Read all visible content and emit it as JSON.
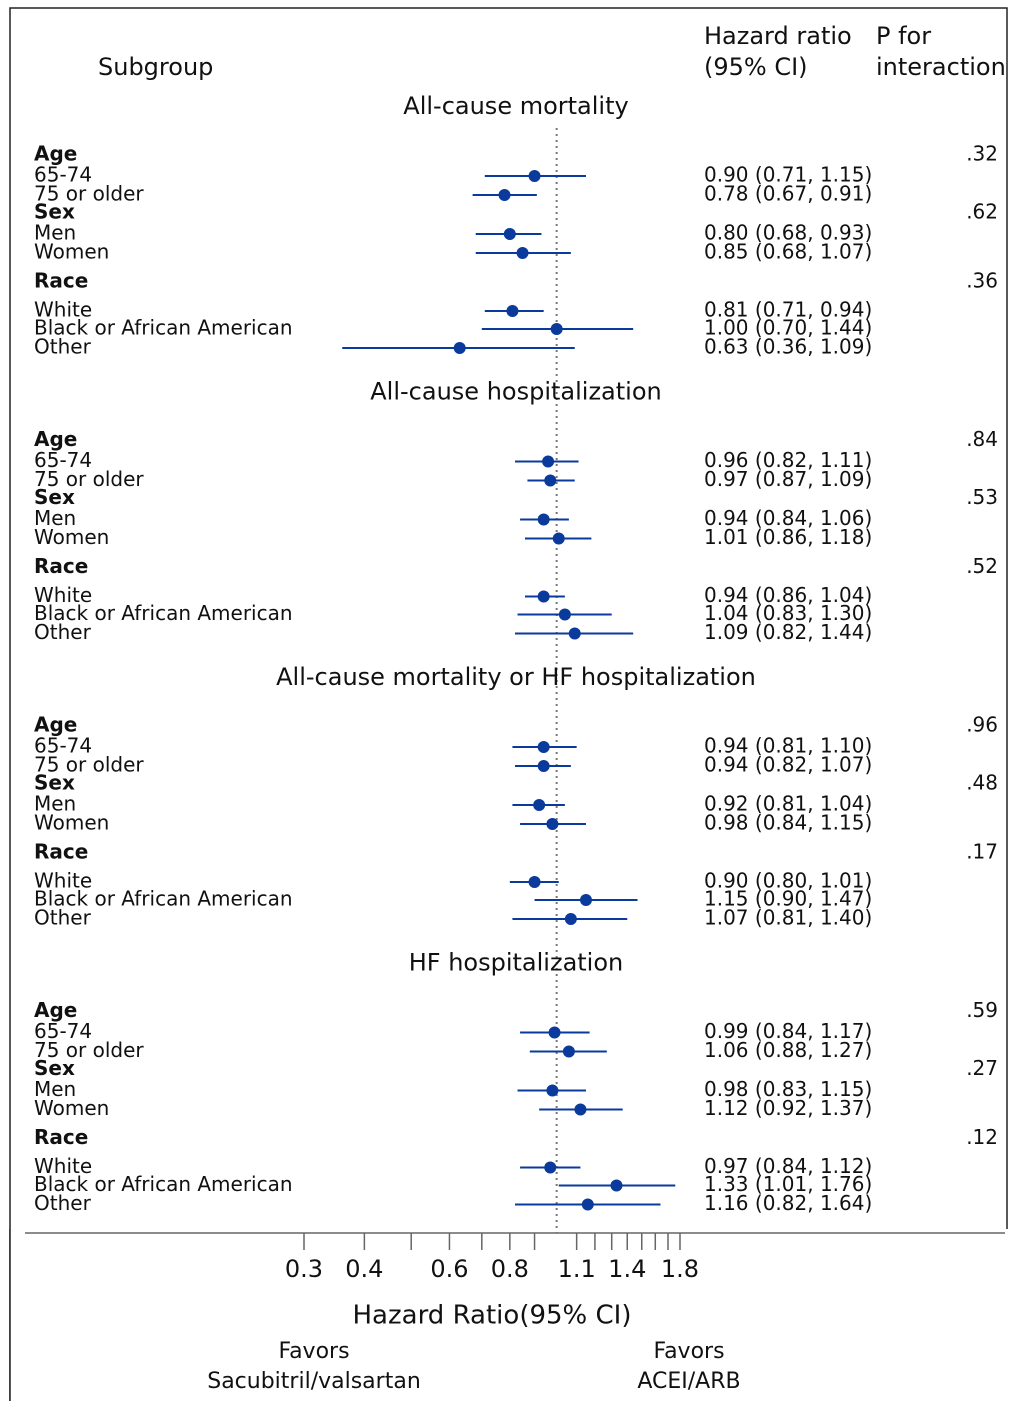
{
  "chart_data": {
    "type": "forest",
    "subgroup_header": "Subgroup",
    "hr_header": [
      "Hazard ratio",
      "(95% CI)"
    ],
    "p_header": [
      "P for",
      "interaction"
    ],
    "xlabel": "Hazard Ratio(95% CI)",
    "favors_left": [
      "Favors",
      "Sacubitril/valsartan"
    ],
    "favors_right": [
      "Favors",
      "ACEI/ARB"
    ],
    "log_x": true,
    "xlim": [
      0.3,
      1.8
    ],
    "xticks": [
      0.3,
      0.4,
      0.6,
      0.8,
      1.1,
      1.4,
      1.8
    ],
    "xminorticks": [
      0.5,
      0.7,
      0.9,
      1.2,
      1.3,
      1.5,
      1.6,
      1.7
    ],
    "refline": 1,
    "color": "#0a3a9c",
    "sections": [
      {
        "title": "All-cause mortality",
        "groups": [
          {
            "name": "Age",
            "p": ".32",
            "rows": [
              {
                "label": "65-74",
                "hr": 0.9,
                "lo": 0.71,
                "hi": 1.15,
                "ci": "0.90 (0.71, 1.15)"
              },
              {
                "label": "75 or older",
                "hr": 0.78,
                "lo": 0.67,
                "hi": 0.91,
                "ci": "0.78 (0.67, 0.91)"
              }
            ]
          },
          {
            "name": "Sex",
            "p": ".62",
            "rows": [
              {
                "label": "Men",
                "hr": 0.8,
                "lo": 0.68,
                "hi": 0.93,
                "ci": "0.80 (0.68, 0.93)"
              },
              {
                "label": "Women",
                "hr": 0.85,
                "lo": 0.68,
                "hi": 1.07,
                "ci": "0.85 (0.68, 1.07)"
              }
            ]
          },
          {
            "name": "Race",
            "p": ".36",
            "rows": [
              {
                "label": "White",
                "hr": 0.81,
                "lo": 0.71,
                "hi": 0.94,
                "ci": "0.81 (0.71, 0.94)"
              },
              {
                "label": "Black or African American",
                "hr": 1.0,
                "lo": 0.7,
                "hi": 1.44,
                "ci": "1.00 (0.70, 1.44)"
              },
              {
                "label": "Other",
                "hr": 0.63,
                "lo": 0.36,
                "hi": 1.09,
                "ci": "0.63 (0.36, 1.09)"
              }
            ]
          }
        ]
      },
      {
        "title": "All-cause hospitalization",
        "groups": [
          {
            "name": "Age",
            "p": ".84",
            "rows": [
              {
                "label": "65-74",
                "hr": 0.96,
                "lo": 0.82,
                "hi": 1.11,
                "ci": "0.96 (0.82, 1.11)"
              },
              {
                "label": "75 or older",
                "hr": 0.97,
                "lo": 0.87,
                "hi": 1.09,
                "ci": "0.97 (0.87, 1.09)"
              }
            ]
          },
          {
            "name": "Sex",
            "p": ".53",
            "rows": [
              {
                "label": "Men",
                "hr": 0.94,
                "lo": 0.84,
                "hi": 1.06,
                "ci": "0.94 (0.84, 1.06)"
              },
              {
                "label": "Women",
                "hr": 1.01,
                "lo": 0.86,
                "hi": 1.18,
                "ci": "1.01 (0.86, 1.18)"
              }
            ]
          },
          {
            "name": "Race",
            "p": ".52",
            "rows": [
              {
                "label": "White",
                "hr": 0.94,
                "lo": 0.86,
                "hi": 1.04,
                "ci": "0.94 (0.86, 1.04)"
              },
              {
                "label": "Black or African American",
                "hr": 1.04,
                "lo": 0.83,
                "hi": 1.3,
                "ci": "1.04 (0.83, 1.30)"
              },
              {
                "label": "Other",
                "hr": 1.09,
                "lo": 0.82,
                "hi": 1.44,
                "ci": "1.09 (0.82, 1.44)"
              }
            ]
          }
        ]
      },
      {
        "title": "All-cause mortality or HF hospitalization",
        "groups": [
          {
            "name": "Age",
            "p": ".96",
            "rows": [
              {
                "label": "65-74",
                "hr": 0.94,
                "lo": 0.81,
                "hi": 1.1,
                "ci": "0.94 (0.81, 1.10)"
              },
              {
                "label": "75 or older",
                "hr": 0.94,
                "lo": 0.82,
                "hi": 1.07,
                "ci": "0.94 (0.82, 1.07)"
              }
            ]
          },
          {
            "name": "Sex",
            "p": ".48",
            "rows": [
              {
                "label": "Men",
                "hr": 0.92,
                "lo": 0.81,
                "hi": 1.04,
                "ci": "0.92 (0.81, 1.04)"
              },
              {
                "label": "Women",
                "hr": 0.98,
                "lo": 0.84,
                "hi": 1.15,
                "ci": "0.98 (0.84, 1.15)"
              }
            ]
          },
          {
            "name": "Race",
            "p": ".17",
            "rows": [
              {
                "label": "White",
                "hr": 0.9,
                "lo": 0.8,
                "hi": 1.01,
                "ci": "0.90 (0.80, 1.01)"
              },
              {
                "label": "Black or African American",
                "hr": 1.15,
                "lo": 0.9,
                "hi": 1.47,
                "ci": "1.15 (0.90, 1.47)"
              },
              {
                "label": "Other",
                "hr": 1.07,
                "lo": 0.81,
                "hi": 1.4,
                "ci": "1.07 (0.81, 1.40)"
              }
            ]
          }
        ]
      },
      {
        "title": "HF hospitalization",
        "groups": [
          {
            "name": "Age",
            "p": ".59",
            "rows": [
              {
                "label": "65-74",
                "hr": 0.99,
                "lo": 0.84,
                "hi": 1.17,
                "ci": "0.99 (0.84, 1.17)"
              },
              {
                "label": "75 or older",
                "hr": 1.06,
                "lo": 0.88,
                "hi": 1.27,
                "ci": "1.06 (0.88, 1.27)"
              }
            ]
          },
          {
            "name": "Sex",
            "p": ".27",
            "rows": [
              {
                "label": "Men",
                "hr": 0.98,
                "lo": 0.83,
                "hi": 1.15,
                "ci": "0.98 (0.83, 1.15)"
              },
              {
                "label": "Women",
                "hr": 1.12,
                "lo": 0.92,
                "hi": 1.37,
                "ci": "1.12 (0.92, 1.37)"
              }
            ]
          },
          {
            "name": "Race",
            "p": ".12",
            "rows": [
              {
                "label": "White",
                "hr": 0.97,
                "lo": 0.84,
                "hi": 1.12,
                "ci": "0.97 (0.84, 1.12)"
              },
              {
                "label": "Black or African American",
                "hr": 1.33,
                "lo": 1.01,
                "hi": 1.76,
                "ci": "1.33 (1.01, 1.76)"
              },
              {
                "label": "Other",
                "hr": 1.16,
                "lo": 0.82,
                "hi": 1.64,
                "ci": "1.16 (0.82, 1.64)"
              }
            ]
          }
        ]
      }
    ]
  }
}
